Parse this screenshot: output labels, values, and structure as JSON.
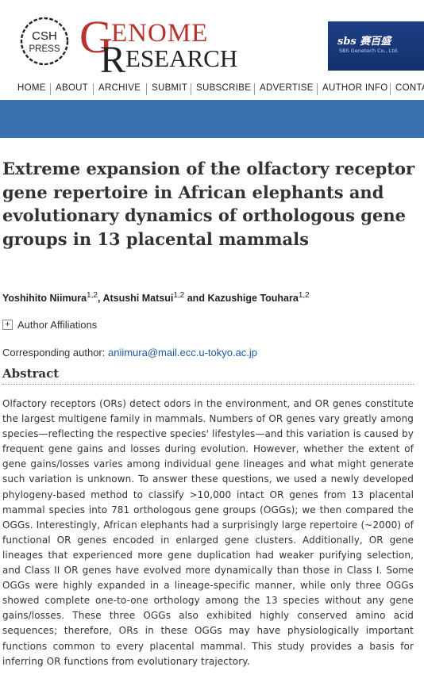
{
  "header": {
    "publisher_logo": [
      "CSH",
      "PRESS"
    ],
    "journal_logo": {
      "big_g": "G",
      "top": "ENOME",
      "big_r": "R",
      "bottom": "ESEARCH"
    },
    "ad": {
      "brand": "sbs 赛百盛",
      "company": "SBS Genetech Co., Ltd."
    },
    "colors": {
      "journal_red": "#b5342d",
      "nav_bar_blue": "#3a70ad",
      "ad_blue": "#1d3f86"
    }
  },
  "nav": {
    "items": [
      "HOME",
      "ABOUT",
      "ARCHIVE",
      "SUBMIT",
      "SUBSCRIBE",
      "ADVERTISE",
      "AUTHOR INFO",
      "CONTA"
    ]
  },
  "article": {
    "title": "Extreme expansion of the olfactory receptor gene repertoire in African elephants and evolutionary dynamics of orthologous gene groups in 13 placental mammals",
    "authors": [
      {
        "name": "Yoshihito Niimura",
        "sup": "1,2"
      },
      {
        "name": "Atsushi Matsui",
        "sup": "1,2"
      },
      {
        "name": "Kazushige Touhara",
        "sup": "1,2"
      }
    ],
    "author_sep": ",",
    "author_and": "and",
    "affiliations_toggle": "Author Affiliations",
    "corresponding_label": "Corresponding author:",
    "corresponding_email": "aniimura@mail.ecc.u-tokyo.ac.jp",
    "abstract_heading": "Abstract",
    "abstract_text": "Olfactory receptors (ORs) detect odors in the environment, and OR genes constitute the largest multigene family in mammals. Numbers of OR genes vary greatly among species—reflecting the respective species' lifestyles—and this variation is caused by frequent gene gains and losses during evolution. However, whether the extent of gene gains/losses varies among individual gene lineages and what might generate such variation is unknown. To answer these questions, we used a newly developed phylogeny-based method to classify >10,000 intact OR genes from 13 placental mammal species into 781 orthologous gene groups (OGGs); we then compared the OGGs. Interestingly, African elephants had a surprisingly large repertoire (~2000) of functional OR genes encoded in enlarged gene clusters. Additionally, OR gene lineages that experienced more gene duplication had weaker purifying selection, and Class II OR genes have evolved more dynamically than those in Class I. Some OGGs were highly expanded in a lineage-specific manner, while only three OGGs showed complete one-to-one orthology among the 13 species without any gene gains/losses. These three OGGs also exhibited highly conserved amino acid sequences; therefore, ORs in these OGGs may have physiologically important functions common to every placental mammal. This study provides a basis for inferring OR functions from evolutionary trajectory."
  }
}
